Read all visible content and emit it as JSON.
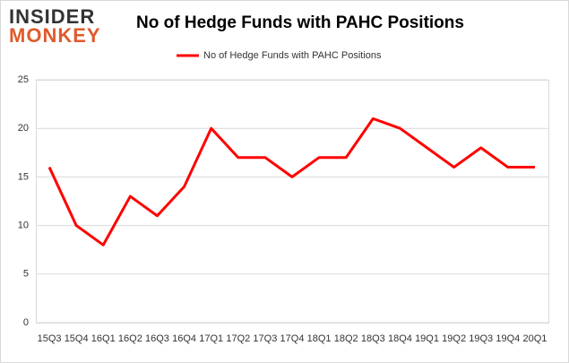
{
  "logo": {
    "line1": "INSIDER",
    "line2": "MONKEY"
  },
  "chart_data": {
    "type": "line",
    "title": "No of Hedge Funds with PAHC Positions",
    "categories": [
      "15Q3",
      "15Q4",
      "16Q1",
      "16Q2",
      "16Q3",
      "16Q4",
      "17Q1",
      "17Q2",
      "17Q3",
      "17Q4",
      "18Q1",
      "18Q2",
      "18Q3",
      "18Q4",
      "19Q1",
      "19Q2",
      "19Q3",
      "19Q4",
      "20Q1"
    ],
    "series": [
      {
        "name": "No of Hedge Funds with PAHC Positions",
        "color": "#ff0000",
        "values": [
          16,
          10,
          8,
          13,
          11,
          14,
          20,
          17,
          17,
          15,
          17,
          17,
          21,
          20,
          18,
          16,
          18,
          16,
          16
        ]
      }
    ],
    "ylim": [
      0,
      25
    ],
    "yticks": [
      0,
      5,
      10,
      15,
      20,
      25
    ],
    "grid": true,
    "legend": "top"
  }
}
